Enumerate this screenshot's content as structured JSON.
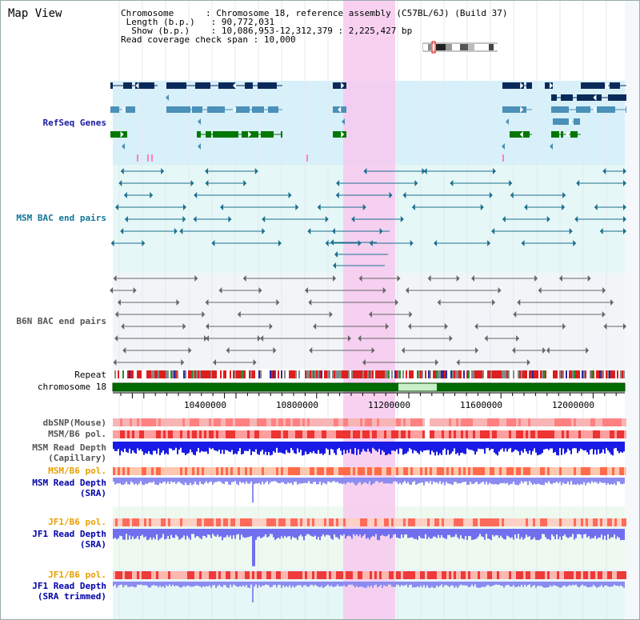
{
  "view_title": "Map View",
  "info": {
    "chromosome_key": "Chromosome",
    "chromosome_val": "Chromosome 18, reference assembly (C57BL/6J) (Build 37)",
    "length_key": "Length (b.p.)",
    "length_val": "90,772,031",
    "show_key": "Show (b.p.)",
    "show_val": "10,086,953-12,312,379 : 2,225,427 bp",
    "span_key": "Read coverage check span",
    "span_val": "10,000"
  },
  "tracks": {
    "refseq": "RefSeq Genes",
    "msm_bac": "MSM BAC end pairs",
    "b6n_bac": "B6N BAC end pairs",
    "repeat": "Repeat",
    "chrom": "chromosome 18",
    "dbsnp": "dbSNP(Mouse)",
    "msm_b6_pol_1": "MSM/B6 pol.",
    "msm_depth_cap_1": "MSM Read Depth",
    "msm_depth_cap_2": "(Capillary)",
    "msm_b6_pol_2": "MSM/B6 pol.",
    "msm_depth_sra_1": "MSM Read Depth",
    "msm_depth_sra_2": "(SRA)",
    "jf1_pol_1": "JF1/B6 pol.",
    "jf1_depth_sra_1": "JF1 Read Depth",
    "jf1_depth_sra_2": "(SRA)",
    "jf1_pol_2": "JF1/B6 pol.",
    "jf1_depth_trim_1": "JF1 Read Depth",
    "jf1_depth_trim_2": "(SRA trimmed)"
  },
  "axis_ticks": [
    "10400000",
    "10800000",
    "11200000",
    "11600000",
    "12000000"
  ],
  "colors": {
    "refseq_label": "#1a1aa6",
    "msm_label": "#117799",
    "b6n_label": "#555555",
    "orange_label": "#e8a000",
    "navy_label": "#0000aa",
    "highlight": "#f7c9ef",
    "gene_dark": "#0a2a5a",
    "gene_green": "#007700",
    "gene_light": "#4a90b8"
  }
}
